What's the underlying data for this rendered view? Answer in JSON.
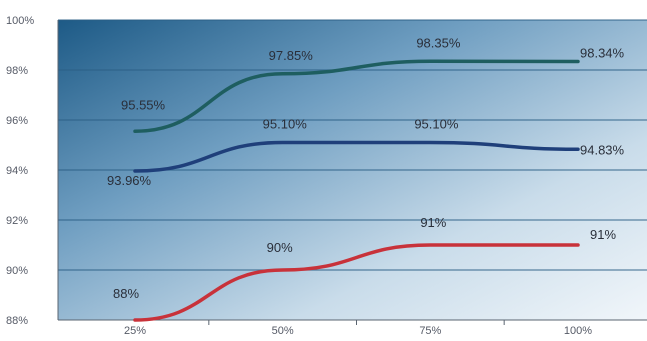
{
  "chart_data": {
    "type": "line",
    "title": "",
    "xlabel": "",
    "ylabel": "",
    "categories": [
      "25%",
      "50%",
      "75%",
      "100%"
    ],
    "ylim": [
      88,
      100
    ],
    "yticks": [
      "88%",
      "90%",
      "92%",
      "94%",
      "96%",
      "98%",
      "100%"
    ],
    "grid": true,
    "legend": "none",
    "series": [
      {
        "color": "#1e5e60",
        "values": [
          95.55,
          97.85,
          98.35,
          98.34
        ],
        "labels": [
          "95.55%",
          "97.85%",
          "98.35%",
          "98.34%"
        ]
      },
      {
        "color": "#1f3f7a",
        "values": [
          93.96,
          95.1,
          95.1,
          94.83
        ],
        "labels": [
          "93.96%",
          "95.10%",
          "95.10%",
          "94.83%"
        ]
      },
      {
        "color": "#c8323a",
        "values": [
          88,
          90,
          91,
          91
        ],
        "labels": [
          "88%",
          "90%",
          "91%",
          "91%"
        ]
      }
    ]
  }
}
